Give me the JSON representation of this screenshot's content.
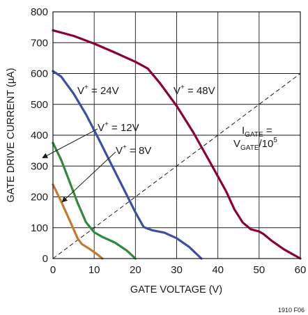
{
  "chart_data": {
    "type": "line",
    "xlabel": "GATE VOLTAGE (V)",
    "ylabel": "GATE DRIVE CURRENT (µA)",
    "xlim": [
      0,
      60
    ],
    "ylim": [
      0,
      800
    ],
    "x_ticks": [
      0,
      10,
      20,
      30,
      40,
      50,
      60
    ],
    "y_ticks": [
      0,
      100,
      200,
      300,
      400,
      500,
      600,
      700,
      800
    ],
    "grid": true,
    "figure_code": "1910 F06",
    "series": [
      {
        "name": "V+ = 48V",
        "label_main": "V",
        "label_sup": "+",
        "label_rest": " = 48V",
        "color": "#8b0038",
        "points": [
          [
            0,
            740
          ],
          [
            5,
            722
          ],
          [
            10,
            697
          ],
          [
            15,
            668
          ],
          [
            20,
            638
          ],
          [
            23,
            616
          ],
          [
            26,
            568
          ],
          [
            30,
            495
          ],
          [
            34,
            410
          ],
          [
            38,
            315
          ],
          [
            42,
            218
          ],
          [
            44,
            160
          ],
          [
            46,
            117
          ],
          [
            48,
            95
          ],
          [
            50,
            88
          ],
          [
            51,
            80
          ],
          [
            53,
            58
          ],
          [
            56,
            30
          ],
          [
            60,
            0
          ]
        ]
      },
      {
        "name": "V+ = 24V",
        "label_main": "V",
        "label_sup": "+",
        "label_rest": " = 24V",
        "color": "#3b4fa8",
        "points": [
          [
            0,
            608
          ],
          [
            2,
            590
          ],
          [
            5,
            535
          ],
          [
            8,
            468
          ],
          [
            11,
            390
          ],
          [
            14,
            310
          ],
          [
            17,
            230
          ],
          [
            20,
            150
          ],
          [
            22,
            102
          ],
          [
            24,
            92
          ],
          [
            27,
            84
          ],
          [
            30,
            66
          ],
          [
            33,
            38
          ],
          [
            36,
            0
          ]
        ]
      },
      {
        "name": "V+ = 12V",
        "label_main": "V",
        "label_sup": "+",
        "label_rest": " = 12V",
        "color": "#2f8a3c",
        "points": [
          [
            0,
            375
          ],
          [
            2,
            320
          ],
          [
            4,
            250
          ],
          [
            6,
            180
          ],
          [
            8,
            118
          ],
          [
            10,
            85
          ],
          [
            12,
            70
          ],
          [
            15,
            52
          ],
          [
            18,
            25
          ],
          [
            20,
            0
          ]
        ]
      },
      {
        "name": "V+ = 8V",
        "label_main": "V",
        "label_sup": "+",
        "label_rest": " = 8V",
        "color": "#c67a30",
        "points": [
          [
            0,
            240
          ],
          [
            2,
            185
          ],
          [
            4,
            125
          ],
          [
            6,
            65
          ],
          [
            7,
            47
          ],
          [
            9,
            30
          ],
          [
            10.5,
            16
          ],
          [
            12,
            0
          ]
        ]
      }
    ],
    "reference_line": {
      "name": "IGATE = VGATE/10^5",
      "line1_main": "I",
      "line1_sub": "GATE",
      "line1_rest": " =",
      "line2_main": "V",
      "line2_sub": "GATE",
      "line2_rest": "/10",
      "line2_sup": "5",
      "points": [
        [
          0,
          0
        ],
        [
          60,
          600
        ]
      ]
    }
  }
}
